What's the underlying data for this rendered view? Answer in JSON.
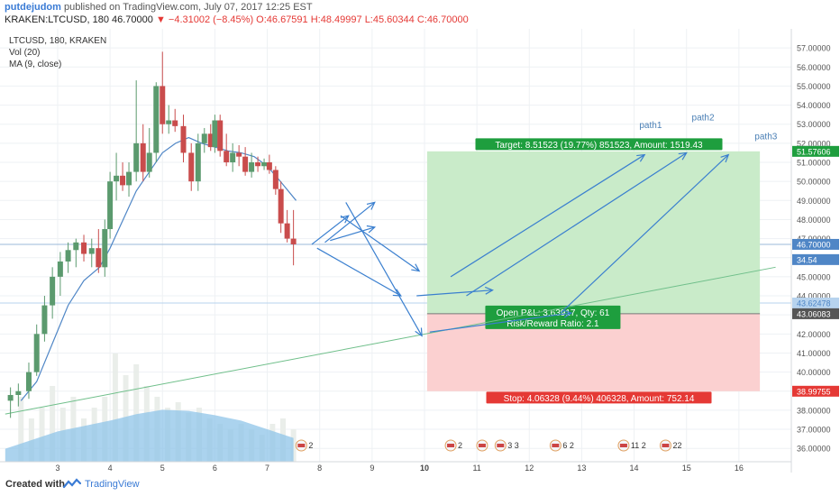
{
  "header": {
    "user": "putdejudom",
    "published": "published on TradingView.com, July 07, 2017 12:25 EST",
    "symbol": "KRAKEN:LTCUSD, 180",
    "last": "46.70000",
    "change": "−4.31002 (−8.45%)",
    "open": "O:46.67591",
    "high": "H:48.49997",
    "low": "L:45.60344",
    "close": "C:46.70000"
  },
  "legend": {
    "symbol": "LTCUSD, 180, KRAKEN",
    "vol": "Vol (20)",
    "ma": "MA (9, close)"
  },
  "footer": {
    "created": "Created with",
    "brand": "TradingView"
  },
  "colors": {
    "up": "#5b9a6e",
    "down": "#c94c4c",
    "ma": "#4f86c6",
    "target_zone": "#c9ebc9",
    "stop_zone": "#fbd0d0",
    "arrows": "#3a7fcf",
    "trendline": "#6fbf8a",
    "vol_area": "#8fc4e8"
  },
  "chart_data": {
    "type": "candlestick",
    "ylim": [
      35.3,
      58.0
    ],
    "yticks": [
      "57.00000",
      "56.00000",
      "55.00000",
      "54.00000",
      "53.00000",
      "52.00000",
      "51.00000",
      "50.00000",
      "49.00000",
      "48.00000",
      "47.00000",
      "46.00000",
      "45.00000",
      "44.00000",
      "43.00000",
      "42.00000",
      "41.00000",
      "40.00000",
      "39.00000",
      "38.00000",
      "37.00000",
      "36.00000"
    ],
    "xticks": [
      {
        "x": 3,
        "label": "3"
      },
      {
        "x": 4,
        "label": "4"
      },
      {
        "x": 5,
        "label": "5"
      },
      {
        "x": 6,
        "label": "6"
      },
      {
        "x": 7,
        "label": "7"
      },
      {
        "x": 8,
        "label": "8"
      },
      {
        "x": 9,
        "label": "9"
      },
      {
        "x": 10,
        "label": "10"
      },
      {
        "x": 11,
        "label": "11"
      },
      {
        "x": 12,
        "label": "12"
      },
      {
        "x": 13,
        "label": "13"
      },
      {
        "x": 14,
        "label": "14"
      },
      {
        "x": 15,
        "label": "15"
      },
      {
        "x": 16,
        "label": "16"
      }
    ],
    "candles": [
      {
        "x": 2.1,
        "o": 38.5,
        "h": 39.2,
        "l": 37.6,
        "c": 38.8
      },
      {
        "x": 2.25,
        "o": 38.8,
        "h": 39.4,
        "l": 38.2,
        "c": 39.0
      },
      {
        "x": 2.45,
        "o": 39.0,
        "h": 40.5,
        "l": 38.6,
        "c": 40.0
      },
      {
        "x": 2.6,
        "o": 40.0,
        "h": 42.5,
        "l": 39.8,
        "c": 42.0
      },
      {
        "x": 2.75,
        "o": 42.0,
        "h": 44.0,
        "l": 41.6,
        "c": 43.5
      },
      {
        "x": 2.9,
        "o": 43.5,
        "h": 45.5,
        "l": 42.8,
        "c": 45.0
      },
      {
        "x": 3.05,
        "o": 45.0,
        "h": 46.3,
        "l": 44.0,
        "c": 45.8
      },
      {
        "x": 3.2,
        "o": 45.8,
        "h": 46.8,
        "l": 45.2,
        "c": 46.4
      },
      {
        "x": 3.35,
        "o": 46.4,
        "h": 47.0,
        "l": 45.5,
        "c": 46.8
      },
      {
        "x": 3.5,
        "o": 46.8,
        "h": 47.2,
        "l": 45.8,
        "c": 46.2
      },
      {
        "x": 3.65,
        "o": 46.2,
        "h": 47.0,
        "l": 45.5,
        "c": 46.5
      },
      {
        "x": 3.78,
        "o": 46.5,
        "h": 47.5,
        "l": 45.2,
        "c": 45.5
      },
      {
        "x": 3.9,
        "o": 45.5,
        "h": 48.0,
        "l": 45.0,
        "c": 47.5
      },
      {
        "x": 4.0,
        "o": 47.5,
        "h": 50.5,
        "l": 47.0,
        "c": 50.0
      },
      {
        "x": 4.12,
        "o": 50.0,
        "h": 51.5,
        "l": 49.0,
        "c": 50.3
      },
      {
        "x": 4.24,
        "o": 50.3,
        "h": 51.0,
        "l": 49.5,
        "c": 49.8
      },
      {
        "x": 4.36,
        "o": 49.8,
        "h": 51.0,
        "l": 49.2,
        "c": 50.5
      },
      {
        "x": 4.5,
        "o": 50.5,
        "h": 55.3,
        "l": 50.0,
        "c": 52.0
      },
      {
        "x": 4.63,
        "o": 52.0,
        "h": 53.0,
        "l": 50.0,
        "c": 50.5
      },
      {
        "x": 4.75,
        "o": 50.5,
        "h": 52.8,
        "l": 50.2,
        "c": 51.5
      },
      {
        "x": 4.88,
        "o": 51.5,
        "h": 55.2,
        "l": 51.0,
        "c": 55.0
      },
      {
        "x": 5.0,
        "o": 55.0,
        "h": 56.8,
        "l": 52.5,
        "c": 53.0
      },
      {
        "x": 5.12,
        "o": 53.0,
        "h": 54.0,
        "l": 52.5,
        "c": 53.2
      },
      {
        "x": 5.24,
        "o": 53.2,
        "h": 53.8,
        "l": 52.6,
        "c": 52.9
      },
      {
        "x": 5.4,
        "o": 52.9,
        "h": 53.5,
        "l": 51.0,
        "c": 51.5
      },
      {
        "x": 5.55,
        "o": 51.5,
        "h": 52.0,
        "l": 49.5,
        "c": 50.0
      },
      {
        "x": 5.68,
        "o": 50.0,
        "h": 52.5,
        "l": 49.5,
        "c": 52.0
      },
      {
        "x": 5.8,
        "o": 52.0,
        "h": 52.8,
        "l": 51.5,
        "c": 52.5
      },
      {
        "x": 5.92,
        "o": 52.5,
        "h": 53.0,
        "l": 51.6,
        "c": 51.8
      },
      {
        "x": 6.0,
        "o": 51.8,
        "h": 53.5,
        "l": 51.5,
        "c": 53.2
      },
      {
        "x": 6.1,
        "o": 53.2,
        "h": 53.5,
        "l": 51.3,
        "c": 51.6
      },
      {
        "x": 6.22,
        "o": 51.6,
        "h": 52.5,
        "l": 50.8,
        "c": 51.0
      },
      {
        "x": 6.34,
        "o": 51.0,
        "h": 52.0,
        "l": 50.5,
        "c": 51.5
      },
      {
        "x": 6.46,
        "o": 51.5,
        "h": 51.9,
        "l": 50.8,
        "c": 51.3
      },
      {
        "x": 6.58,
        "o": 51.3,
        "h": 51.8,
        "l": 50.3,
        "c": 50.5
      },
      {
        "x": 6.7,
        "o": 50.5,
        "h": 51.5,
        "l": 50.2,
        "c": 51.0
      },
      {
        "x": 6.82,
        "o": 51.0,
        "h": 51.3,
        "l": 50.5,
        "c": 50.8
      },
      {
        "x": 6.94,
        "o": 50.8,
        "h": 51.2,
        "l": 50.6,
        "c": 51.0
      },
      {
        "x": 7.04,
        "o": 51.0,
        "h": 51.4,
        "l": 50.4,
        "c": 50.6
      },
      {
        "x": 7.16,
        "o": 50.6,
        "h": 50.8,
        "l": 49.3,
        "c": 49.6
      },
      {
        "x": 7.26,
        "o": 49.6,
        "h": 50.0,
        "l": 47.3,
        "c": 47.8
      },
      {
        "x": 7.38,
        "o": 47.8,
        "h": 48.5,
        "l": 46.8,
        "c": 47.0
      },
      {
        "x": 7.5,
        "o": 47.0,
        "h": 48.5,
        "l": 45.6,
        "c": 46.7
      }
    ],
    "ma": [
      [
        2.3,
        38.5
      ],
      [
        2.6,
        39.5
      ],
      [
        2.9,
        41.5
      ],
      [
        3.2,
        43.5
      ],
      [
        3.5,
        44.8
      ],
      [
        3.8,
        45.5
      ],
      [
        4.0,
        46.5
      ],
      [
        4.25,
        48.0
      ],
      [
        4.5,
        49.5
      ],
      [
        4.75,
        50.5
      ],
      [
        5.0,
        51.5
      ],
      [
        5.25,
        52.0
      ],
      [
        5.5,
        52.3
      ],
      [
        5.75,
        52.0
      ],
      [
        6.0,
        51.8
      ],
      [
        6.25,
        51.6
      ],
      [
        6.5,
        51.5
      ],
      [
        6.75,
        51.3
      ],
      [
        7.0,
        50.8
      ],
      [
        7.25,
        50.0
      ],
      [
        7.55,
        49.0
      ]
    ],
    "volume": [
      {
        "x": 2.3,
        "v": 0.6
      },
      {
        "x": 2.5,
        "v": 0.4
      },
      {
        "x": 2.7,
        "v": 0.5
      },
      {
        "x": 2.9,
        "v": 0.7
      },
      {
        "x": 3.1,
        "v": 0.5
      },
      {
        "x": 3.3,
        "v": 0.6
      },
      {
        "x": 3.5,
        "v": 0.4
      },
      {
        "x": 3.7,
        "v": 0.5
      },
      {
        "x": 3.9,
        "v": 0.6
      },
      {
        "x": 4.1,
        "v": 1.0
      },
      {
        "x": 4.3,
        "v": 0.8
      },
      {
        "x": 4.5,
        "v": 0.9
      },
      {
        "x": 4.7,
        "v": 0.7
      },
      {
        "x": 4.9,
        "v": 0.6
      },
      {
        "x": 5.1,
        "v": 0.5
      },
      {
        "x": 5.3,
        "v": 0.55
      },
      {
        "x": 5.5,
        "v": 0.45
      },
      {
        "x": 5.7,
        "v": 0.5
      },
      {
        "x": 5.9,
        "v": 0.4
      },
      {
        "x": 6.1,
        "v": 0.35
      },
      {
        "x": 6.3,
        "v": 0.3
      },
      {
        "x": 6.5,
        "v": 0.35
      },
      {
        "x": 6.7,
        "v": 0.3
      },
      {
        "x": 6.9,
        "v": 0.25
      },
      {
        "x": 7.1,
        "v": 0.35
      },
      {
        "x": 7.3,
        "v": 0.4
      },
      {
        "x": 7.5,
        "v": 0.3
      }
    ],
    "vol_ma": [
      [
        2.0,
        0.12
      ],
      [
        2.5,
        0.2
      ],
      [
        3.0,
        0.28
      ],
      [
        3.5,
        0.33
      ],
      [
        4.0,
        0.38
      ],
      [
        4.5,
        0.44
      ],
      [
        5.0,
        0.48
      ],
      [
        5.5,
        0.47
      ],
      [
        6.0,
        0.43
      ],
      [
        6.5,
        0.38
      ],
      [
        7.0,
        0.3
      ],
      [
        7.5,
        0.22
      ]
    ],
    "price_labels": [
      {
        "y": 51.57606,
        "text": "51.57606",
        "color": "#1e9e3e"
      },
      {
        "y": 46.7,
        "text": "46.70000",
        "color": "#4f86c6"
      },
      {
        "y": 45.9,
        "text": "34.54",
        "color": "#4f86c6"
      },
      {
        "y": 43.62478,
        "text": "43.62478",
        "color": "#b7d3ee",
        "textColor": "#4f86c6"
      },
      {
        "y": 43.06083,
        "text": "43.06083",
        "color": "#555555"
      },
      {
        "y": 38.99755,
        "text": "38.99755",
        "color": "#e53935"
      }
    ],
    "position": {
      "x_start": 10.05,
      "x_end": 16.4,
      "entry": 43.06083,
      "target": 51.57606,
      "stop": 38.99755,
      "target_label": "Target: 8.51523 (19.77%) 851523, Amount: 1519.43",
      "pnl_label": "Open P&L: 3.63917, Qty: 61",
      "rr_label": "Risk/Reward Ratio: 2.1",
      "stop_label": "Stop: 4.06328 (9.44%) 406328, Amount: 752.14"
    },
    "trendline": [
      [
        2.0,
        37.8
      ],
      [
        16.7,
        45.5
      ]
    ],
    "hline_ref": [
      43.62478,
      46.7
    ],
    "arrows": [
      [
        [
          7.85,
          46.7
        ],
        [
          8.55,
          48.2
        ]
      ],
      [
        [
          8.1,
          46.8
        ],
        [
          9.05,
          48.9
        ]
      ],
      [
        [
          8.2,
          46.9
        ],
        [
          9.05,
          47.6
        ]
      ],
      [
        [
          7.95,
          46.5
        ],
        [
          9.55,
          44.0
        ]
      ],
      [
        [
          8.4,
          48.2
        ],
        [
          9.9,
          45.3
        ]
      ],
      [
        [
          8.5,
          48.9
        ],
        [
          9.95,
          41.9
        ]
      ],
      [
        [
          9.85,
          44.0
        ],
        [
          11.3,
          44.3
        ]
      ],
      [
        [
          10.5,
          45.0
        ],
        [
          14.2,
          51.4
        ]
      ],
      [
        [
          10.8,
          44.0
        ],
        [
          15.0,
          51.5
        ]
      ],
      [
        [
          10.1,
          42.1
        ],
        [
          12.8,
          43.1
        ]
      ],
      [
        [
          12.6,
          43.1
        ],
        [
          15.8,
          51.4
        ]
      ]
    ],
    "paths": [
      {
        "x": 14.1,
        "y": 52.8,
        "text": "path1"
      },
      {
        "x": 15.1,
        "y": 53.2,
        "text": "path2"
      },
      {
        "x": 16.3,
        "y": 52.2,
        "text": "path3"
      }
    ],
    "events": [
      {
        "x": 10.5,
        "text": "2"
      },
      {
        "x": 11.1,
        "text": ""
      },
      {
        "x": 11.45,
        "text": "3 3"
      },
      {
        "x": 12.5,
        "text": "6 2"
      },
      {
        "x": 13.8,
        "text": "11 2"
      },
      {
        "x": 14.6,
        "text": "22"
      },
      {
        "x": 7.65,
        "text": "2"
      }
    ]
  }
}
